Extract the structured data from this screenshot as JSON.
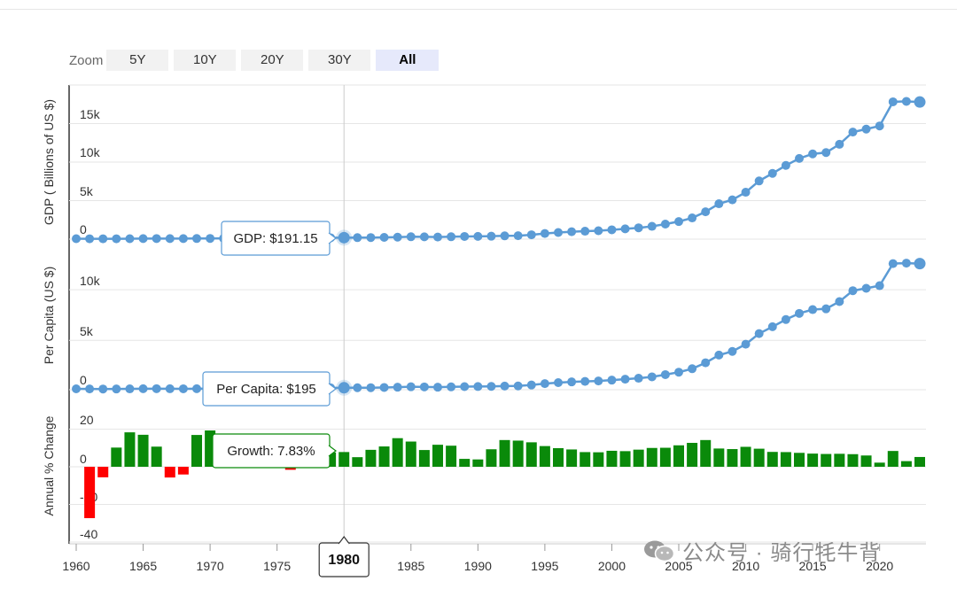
{
  "zoom": {
    "label": "Zoom",
    "options": [
      "5Y",
      "10Y",
      "20Y",
      "30Y",
      "All"
    ],
    "active": "All"
  },
  "colors": {
    "line": "#5b9bd5",
    "positive": "#0a8a0a",
    "negative": "#ff0000",
    "crosshair": "#cccccc",
    "grid": "#e6e6e6"
  },
  "tooltips": {
    "gdp": "GDP: $191.15",
    "per_capita": "Per Capita: $195",
    "growth": "Growth: 7.83%",
    "year": "1980"
  },
  "watermark": {
    "text": "公众号 · 骑行牦牛背",
    "icon": "wechat-icon"
  },
  "chart_data": [
    {
      "type": "line",
      "ylabel": "GDP ( Billions of US $)",
      "yticks": [
        "0",
        "5k",
        "10k",
        "15k"
      ],
      "ylim": [
        0,
        20000
      ],
      "x": [
        1960,
        1961,
        1962,
        1963,
        1964,
        1965,
        1966,
        1967,
        1968,
        1969,
        1970,
        1971,
        1972,
        1973,
        1974,
        1975,
        1976,
        1977,
        1978,
        1979,
        1980,
        1981,
        1982,
        1983,
        1984,
        1985,
        1986,
        1987,
        1988,
        1989,
        1990,
        1991,
        1992,
        1993,
        1994,
        1995,
        1996,
        1997,
        1998,
        1999,
        2000,
        2001,
        2002,
        2003,
        2004,
        2005,
        2006,
        2007,
        2008,
        2009,
        2010,
        2011,
        2012,
        2013,
        2014,
        2015,
        2016,
        2017,
        2018,
        2019,
        2020,
        2021,
        2022,
        2023
      ],
      "values": [
        60,
        50,
        47,
        50,
        59,
        70,
        76,
        73,
        71,
        80,
        92,
        100,
        114,
        139,
        144,
        163,
        154,
        175,
        150,
        179,
        191,
        196,
        206,
        231,
        260,
        309,
        301,
        273,
        312,
        348,
        361,
        383,
        427,
        444,
        564,
        734,
        864,
        962,
        1029,
        1094,
        1211,
        1339,
        1471,
        1660,
        1955,
        2286,
        2752,
        3550,
        4594,
        5101,
        6087,
        7552,
        8532,
        9570,
        10476,
        11062,
        11233,
        12310,
        13895,
        14280,
        14688,
        17820,
        17880,
        17795
      ],
      "marker_scale": 0.0125
    },
    {
      "type": "line",
      "ylabel": "Per Capita (US $)",
      "yticks": [
        "0",
        "5k",
        "10k"
      ],
      "ylim": [
        0,
        14000
      ],
      "x": [
        1960,
        1961,
        1962,
        1963,
        1964,
        1965,
        1966,
        1967,
        1968,
        1969,
        1970,
        1971,
        1972,
        1973,
        1974,
        1975,
        1976,
        1977,
        1978,
        1979,
        1980,
        1981,
        1982,
        1983,
        1984,
        1985,
        1986,
        1987,
        1988,
        1989,
        1990,
        1991,
        1992,
        1993,
        1994,
        1995,
        1996,
        1997,
        1998,
        1999,
        2000,
        2001,
        2002,
        2003,
        2004,
        2005,
        2006,
        2007,
        2008,
        2009,
        2010,
        2011,
        2012,
        2013,
        2014,
        2015,
        2016,
        2017,
        2018,
        2019,
        2020,
        2021,
        2022,
        2023
      ],
      "values": [
        89,
        76,
        70,
        74,
        85,
        98,
        104,
        97,
        91,
        100,
        113,
        119,
        132,
        157,
        160,
        178,
        165,
        185,
        156,
        183,
        195,
        197,
        203,
        225,
        251,
        294,
        282,
        251,
        283,
        310,
        318,
        333,
        366,
        377,
        473,
        610,
        709,
        782,
        829,
        873,
        959,
        1053,
        1149,
        1289,
        1509,
        1753,
        2099,
        2694,
        3468,
        3832,
        4550,
        5614,
        6301,
        7020,
        7636,
        8016,
        8094,
        8817,
        9905,
        10144,
        10409,
        12617,
        12663,
        12614
      ]
    },
    {
      "type": "bar",
      "ylabel": "Annual % Change",
      "yticks": [
        "-40",
        "-20",
        "0",
        "20"
      ],
      "ylim": [
        -40,
        20
      ],
      "x": [
        1960,
        1961,
        1962,
        1963,
        1964,
        1965,
        1966,
        1967,
        1968,
        1969,
        1970,
        1971,
        1972,
        1973,
        1974,
        1975,
        1976,
        1977,
        1978,
        1979,
        1980,
        1981,
        1982,
        1983,
        1984,
        1985,
        1986,
        1987,
        1988,
        1989,
        1990,
        1991,
        1992,
        1993,
        1994,
        1995,
        1996,
        1997,
        1998,
        1999,
        2000,
        2001,
        2002,
        2003,
        2004,
        2005,
        2006,
        2007,
        2008,
        2009,
        2010,
        2011,
        2012,
        2013,
        2014,
        2015,
        2016,
        2017,
        2018,
        2019,
        2020,
        2021,
        2022,
        2023
      ],
      "values": [
        null,
        -27.3,
        -5.6,
        10.2,
        18.3,
        17.0,
        10.7,
        -5.7,
        -4.1,
        16.9,
        19.3,
        7.1,
        3.8,
        7.8,
        2.3,
        8.7,
        -1.6,
        7.6,
        11.7,
        7.6,
        7.83,
        5.1,
        9.0,
        10.8,
        15.2,
        13.4,
        8.9,
        11.7,
        11.2,
        4.2,
        3.9,
        9.3,
        14.2,
        13.9,
        13.0,
        11.0,
        9.9,
        9.2,
        7.8,
        7.7,
        8.5,
        8.3,
        9.1,
        10.0,
        10.1,
        11.4,
        12.7,
        14.2,
        9.7,
        9.4,
        10.6,
        9.6,
        7.9,
        7.8,
        7.4,
        7.0,
        6.8,
        6.9,
        6.7,
        6.0,
        2.2,
        8.4,
        3.0,
        5.2
      ]
    }
  ],
  "x_axis": {
    "ticks": [
      "1960",
      "1965",
      "1970",
      "1975",
      "1980",
      "1985",
      "1990",
      "1995",
      "2000",
      "2005",
      "2010",
      "2015",
      "2020"
    ],
    "xlim": [
      1960,
      2023
    ]
  }
}
